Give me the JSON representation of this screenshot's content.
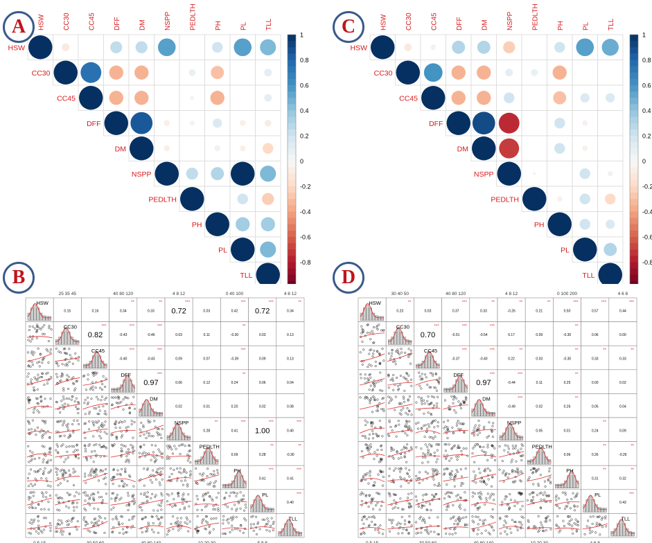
{
  "panels": {
    "A": {
      "letter": "A"
    },
    "B": {
      "letter": "B"
    },
    "C": {
      "letter": "C"
    },
    "D": {
      "letter": "D"
    }
  },
  "chart_data": [
    {
      "id": "A",
      "type": "heatmap",
      "variables": [
        "HSW",
        "CC30",
        "CC45",
        "DFF",
        "DM",
        "NSPP",
        "PEDLTH",
        "PH",
        "PL",
        "TLL"
      ],
      "matrix": [
        [
          1,
          -0.1,
          0,
          0.25,
          0.25,
          0.55,
          0,
          0.2,
          0.55,
          0.45
        ],
        [
          0,
          1,
          0.75,
          -0.35,
          -0.35,
          0,
          0.08,
          -0.3,
          0,
          0.1
        ],
        [
          0,
          0,
          1,
          -0.35,
          -0.35,
          0,
          0.03,
          -0.35,
          0,
          0.1
        ],
        [
          0,
          0,
          0,
          1,
          0.85,
          -0.06,
          -0.04,
          0.15,
          -0.06,
          -0.08
        ],
        [
          0,
          0,
          0,
          0,
          1,
          -0.06,
          0,
          0.06,
          -0.06,
          -0.2
        ],
        [
          0,
          0,
          0,
          0,
          0,
          1,
          0.25,
          0.3,
          1,
          0.45
        ],
        [
          0,
          0,
          0,
          0,
          0,
          0,
          1,
          0,
          0.2,
          -0.25
        ],
        [
          0,
          0,
          0,
          0,
          0,
          0,
          0,
          1,
          0.35,
          0.35
        ],
        [
          0,
          0,
          0,
          0,
          0,
          0,
          0,
          0,
          1,
          0.45
        ],
        [
          0,
          0,
          0,
          0,
          0,
          0,
          0,
          0,
          0,
          1
        ]
      ],
      "colorbar_ticks": [
        "1",
        "0.8",
        "0.6",
        "0.4",
        "0.2",
        "0",
        "-0.2",
        "-0.4",
        "-0.6",
        "-0.8",
        "-1"
      ],
      "colorbar_range": [
        -1,
        1
      ]
    },
    {
      "id": "C",
      "type": "heatmap",
      "variables": [
        "HSW",
        "CC30",
        "CC45",
        "DFF",
        "DM",
        "NSPP",
        "PEDLTH",
        "PH",
        "PL",
        "TLL"
      ],
      "matrix": [
        [
          1,
          -0.1,
          0.05,
          0.3,
          0.3,
          -0.25,
          0,
          0.2,
          0.55,
          0.5
        ],
        [
          0,
          1,
          0.6,
          -0.35,
          -0.35,
          0.1,
          0.08,
          -0.35,
          0,
          0
        ],
        [
          0,
          0,
          1,
          -0.35,
          -0.35,
          0.2,
          0,
          -0.3,
          0.15,
          0.15
        ],
        [
          0,
          0,
          0,
          1,
          0.9,
          -0.75,
          0,
          0.2,
          -0.05,
          0
        ],
        [
          0,
          0,
          0,
          0,
          1,
          -0.7,
          0,
          0.2,
          -0.05,
          0
        ],
        [
          0,
          0,
          0,
          0,
          0,
          1,
          0.02,
          0,
          0.2,
          0.05
        ],
        [
          0,
          0,
          0,
          0,
          0,
          0,
          1,
          -0.05,
          0.2,
          -0.2
        ],
        [
          0,
          0,
          0,
          0,
          0,
          0,
          0,
          1,
          0.2,
          0.15
        ],
        [
          0,
          0,
          0,
          0,
          0,
          0,
          0,
          0,
          1,
          0.3
        ],
        [
          0,
          0,
          0,
          0,
          0,
          0,
          0,
          0,
          0,
          1
        ]
      ],
      "colorbar_ticks": [
        "1",
        "0.8",
        "0.6",
        "0.4",
        "0.2",
        "0",
        "-0.2",
        "-0.4",
        "-0.6",
        "-0.8",
        "-1"
      ],
      "colorbar_range": [
        -1,
        1
      ]
    },
    {
      "id": "B",
      "type": "scatter",
      "variables": [
        "HSW",
        "CC30",
        "CC45",
        "DFF",
        "DM",
        "NSPP",
        "PEDLTH",
        "PH",
        "PL",
        "TLL"
      ],
      "correlations": [
        [
          "",
          "0.15",
          "0.16",
          "0.34",
          "0.33",
          "0.72",
          "0.03",
          "0.42",
          "0.72",
          "0.34"
        ],
        [
          "",
          "",
          "0.82",
          "-0.43",
          "-0.46",
          "0.03",
          "0.11",
          "-0.30",
          "0.03",
          "0.13"
        ],
        [
          "",
          "",
          "",
          "-0.40",
          "-0.43",
          "0.09",
          "0.07",
          "-0.39",
          "0.09",
          "0.13"
        ],
        [
          "",
          "",
          "",
          "",
          "0.97",
          "0.06",
          "0.12",
          "0.24",
          "0.06",
          "0.04"
        ],
        [
          "",
          "",
          "",
          "",
          "",
          "0.02",
          "0.01",
          "0.20",
          "0.02",
          "0.08"
        ],
        [
          "",
          "",
          "",
          "",
          "",
          "",
          "0.28",
          "0.41",
          "1.00",
          "0.40"
        ],
        [
          "",
          "",
          "",
          "",
          "",
          "",
          "",
          "0.09",
          "0.28",
          "-0.30"
        ],
        [
          "",
          "",
          "",
          "",
          "",
          "",
          "",
          "",
          "0.41",
          "0.41"
        ],
        [
          "",
          "",
          "",
          "",
          "",
          "",
          "",
          "",
          "",
          "0.40"
        ],
        [
          "",
          "",
          "",
          "",
          "",
          "",
          "",
          "",
          "",
          ""
        ]
      ],
      "top_axis_ticks": [
        "25 35 45",
        "40 80 120",
        "4 8 12",
        "0 40 100",
        "4 8 12"
      ],
      "bottom_axis_ticks": [
        "0 5 15",
        "30 50 60",
        "40 80 140",
        "10 20 30",
        "5 8 8"
      ]
    },
    {
      "id": "D",
      "type": "scatter",
      "variables": [
        "HSW",
        "CC30",
        "CC45",
        "DFF",
        "DM",
        "NSPP",
        "PEDLTH",
        "PH",
        "PL",
        "TLL"
      ],
      "correlations": [
        [
          "",
          "0.23",
          "0.03",
          "0.37",
          "0.33",
          "-0.26",
          "0.21",
          "0.50",
          "0.57",
          "0.44"
        ],
        [
          "",
          "",
          "0.70",
          "-0.51",
          "-0.54",
          "0.17",
          "0.09",
          "-0.30",
          "0.06",
          "0.00"
        ],
        [
          "",
          "",
          "",
          "-0.37",
          "-0.40",
          "0.22",
          "0.03",
          "-0.30",
          "0.33",
          "0.33"
        ],
        [
          "",
          "",
          "",
          "",
          "0.97",
          "-0.44",
          "0.11",
          "0.25",
          "0.00",
          "0.02"
        ],
        [
          "",
          "",
          "",
          "",
          "",
          "-0.49",
          "0.02",
          "0.26",
          "0.05",
          "0.04"
        ],
        [
          "",
          "",
          "",
          "",
          "",
          "",
          "0.05",
          "0.01",
          "0.24",
          "0.09"
        ],
        [
          "",
          "",
          "",
          "",
          "",
          "",
          "",
          "0.06",
          "0.26",
          "-0.26"
        ],
        [
          "",
          "",
          "",
          "",
          "",
          "",
          "",
          "",
          "0.31",
          "0.32"
        ],
        [
          "",
          "",
          "",
          "",
          "",
          "",
          "",
          "",
          "",
          "0.43"
        ],
        [
          "",
          "",
          "",
          "",
          "",
          "",
          "",
          "",
          "",
          ""
        ]
      ],
      "top_axis_ticks": [
        "30 40 50",
        "40 80 120",
        "4 8 12",
        "0 100 200",
        "4 6 8"
      ],
      "bottom_axis_ticks": [
        "0 5 15",
        "30 50 60",
        "40 80 140",
        "10 20 30",
        "4 6 8"
      ]
    }
  ]
}
